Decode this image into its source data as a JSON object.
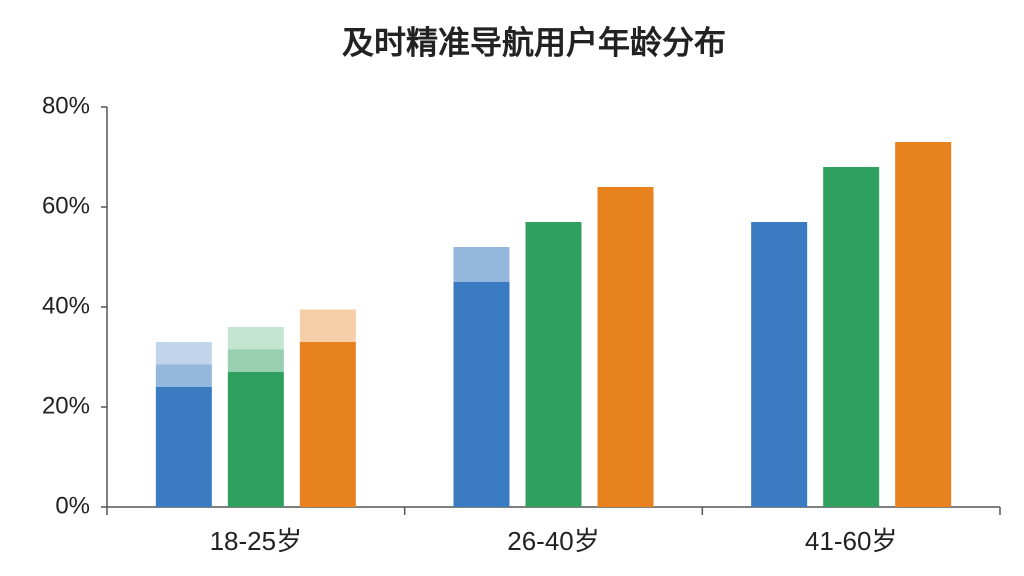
{
  "chart_data": {
    "type": "bar",
    "title": "及时精准导航用户年龄分布",
    "categories": [
      "18-25岁",
      "26-40岁",
      "41-60岁"
    ],
    "series": [
      {
        "color": "#3a7bc1",
        "layers": [
          {
            "values": [
              24,
              45,
              57
            ],
            "opacity": 1
          },
          {
            "values": [
              4.5,
              7,
              null
            ],
            "opacity": 0.55
          },
          {
            "values": [
              4.5,
              null,
              null
            ],
            "opacity": 0.32
          }
        ]
      },
      {
        "color": "#2fa060",
        "layers": [
          {
            "values": [
              27,
              57,
              68
            ],
            "opacity": 1
          },
          {
            "values": [
              4.5,
              null,
              null
            ],
            "opacity": 0.5
          },
          {
            "values": [
              4.5,
              null,
              null
            ],
            "opacity": 0.28
          }
        ]
      },
      {
        "color": "#e8821e",
        "layers": [
          {
            "values": [
              33,
              64,
              73
            ],
            "opacity": 1
          },
          {
            "values": [
              6.5,
              null,
              null
            ],
            "opacity": 0.38
          }
        ]
      }
    ],
    "ylim": [
      0,
      80
    ],
    "yticks": [
      {
        "value": 0,
        "label": "0%"
      },
      {
        "value": 20,
        "label": "20%"
      },
      {
        "value": 40,
        "label": "40%"
      },
      {
        "value": 60,
        "label": "60%"
      },
      {
        "value": 80,
        "label": "80%"
      }
    ],
    "grid": false
  }
}
